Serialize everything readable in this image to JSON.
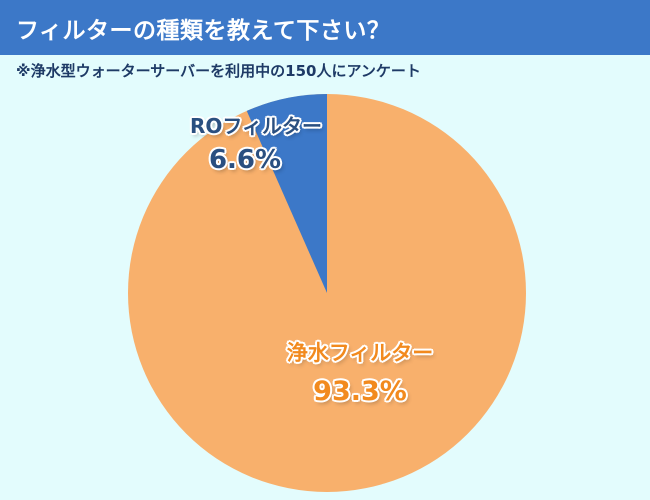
{
  "header": {
    "title": "フィルターの種類を教えて下さい？"
  },
  "subtitle": "※浄水型ウォーターサーバーを利用中の150人にアンケート",
  "colors": {
    "header_bg": "#3c78c8",
    "background": "#e3fcfd",
    "ro_slice": "#3c78c8",
    "water_slice": "#f8b06c",
    "ro_label": "#2a4f80",
    "water_label": "#f28a1e"
  },
  "labels": {
    "ro_name": "ROフィルター",
    "ro_value": "6.6%",
    "water_name": "浄水フィルター",
    "water_value": "93.3%"
  },
  "chart_data": {
    "type": "pie",
    "title": "フィルターの種類を教えて下さい？",
    "subtitle": "※浄水型ウォーターサーバーを利用中の150人にアンケート",
    "categories": [
      "浄水フィルター",
      "ROフィルター"
    ],
    "values": [
      93.3,
      6.6
    ],
    "unit": "%",
    "colors": [
      "#f8b06c",
      "#3c78c8"
    ],
    "start_angle": "12 o'clock, counter-clockwise for RO slice",
    "legend": "none (inline labels)"
  }
}
